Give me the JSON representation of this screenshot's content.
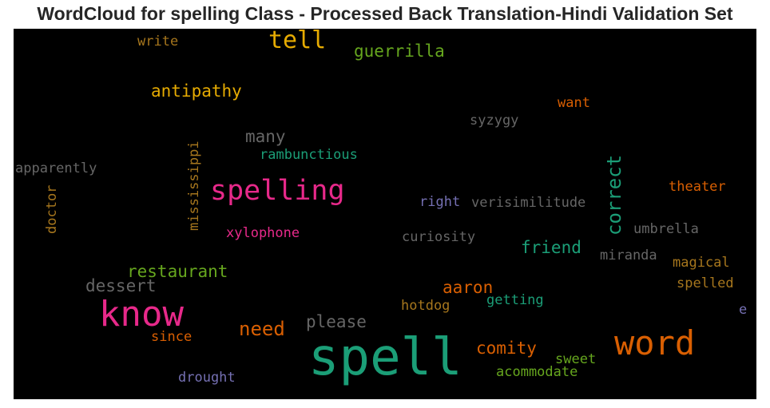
{
  "chart_data": {
    "type": "wordcloud",
    "title": "WordCloud for spelling Class - Processed Back Translation-Hindi Validation Set",
    "background": "#000000",
    "words": [
      {
        "text": "spell",
        "color": "#1b9e77"
      },
      {
        "text": "know",
        "color": "#e7298a"
      },
      {
        "text": "word",
        "color": "#d95f02"
      },
      {
        "text": "spelling",
        "color": "#e7298a"
      },
      {
        "text": "tell",
        "color": "#e6ab02"
      },
      {
        "text": "correct",
        "color": "#1b9e77"
      },
      {
        "text": "need",
        "color": "#d95f02"
      },
      {
        "text": "guerrilla",
        "color": "#66a61e"
      },
      {
        "text": "antipathy",
        "color": "#e6ab02"
      },
      {
        "text": "restaurant",
        "color": "#66a61e"
      },
      {
        "text": "dessert",
        "color": "#666666"
      },
      {
        "text": "please",
        "color": "#666666"
      },
      {
        "text": "friend",
        "color": "#1b9e77"
      },
      {
        "text": "aaron",
        "color": "#d95f02"
      },
      {
        "text": "comity",
        "color": "#d95f02"
      },
      {
        "text": "many",
        "color": "#666666"
      },
      {
        "text": "mississippi",
        "color": "#a6761d"
      },
      {
        "text": "rambunctious",
        "color": "#1b9e77"
      },
      {
        "text": "syzygy",
        "color": "#666666"
      },
      {
        "text": "want",
        "color": "#d95f02"
      },
      {
        "text": "write",
        "color": "#a6761d"
      },
      {
        "text": "apparently",
        "color": "#666666"
      },
      {
        "text": "doctor",
        "color": "#a6761d"
      },
      {
        "text": "xylophone",
        "color": "#e7298a"
      },
      {
        "text": "right",
        "color": "#7570b3"
      },
      {
        "text": "verisimilitude",
        "color": "#666666"
      },
      {
        "text": "theater",
        "color": "#d95f02"
      },
      {
        "text": "umbrella",
        "color": "#666666"
      },
      {
        "text": "curiosity",
        "color": "#666666"
      },
      {
        "text": "miranda",
        "color": "#666666"
      },
      {
        "text": "magical",
        "color": "#a6761d"
      },
      {
        "text": "spelled",
        "color": "#a6761d"
      },
      {
        "text": "getting",
        "color": "#1b9e77"
      },
      {
        "text": "hotdog",
        "color": "#a6761d"
      },
      {
        "text": "since",
        "color": "#d95f02"
      },
      {
        "text": "sweet",
        "color": "#66a61e"
      },
      {
        "text": "acommodate",
        "color": "#66a61e"
      },
      {
        "text": "drought",
        "color": "#7570b3"
      },
      {
        "text": "e",
        "color": "#7570b3"
      }
    ]
  }
}
